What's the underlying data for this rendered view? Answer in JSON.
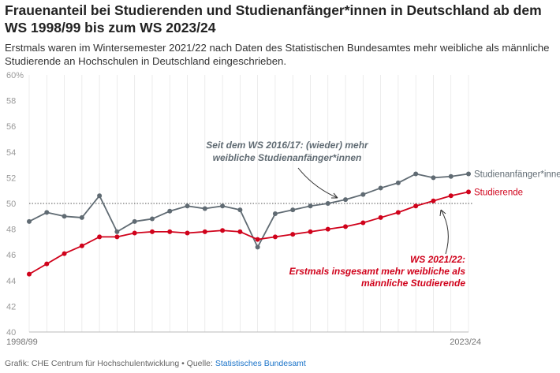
{
  "title": "Frauenanteil bei Studierenden und Studienanfänger*innen in Deutschland ab dem WS 1998/99 bis zum WS 2023/24",
  "subtitle": "Erstmals waren im Wintersemester 2021/22 nach Daten des Statistischen Bundesamtes mehr weibliche als männliche Studierende an Hochschulen in Deutschland eingeschrieben.",
  "footer": {
    "prefix": "Grafik: CHE Centrum für Hochschulentwicklung • Quelle: ",
    "source": "Statistisches Bundesamt"
  },
  "colors": {
    "studienanfaenger": "#606b73",
    "studierende": "#d0021b",
    "grid": "#e4e4e4",
    "reference": "#555555"
  },
  "chart_data": {
    "type": "line",
    "x_tick_labels": [
      "1998/99",
      "2023/24"
    ],
    "y_tick_labels": [
      "40",
      "42",
      "44",
      "46",
      "48",
      "50",
      "52",
      "54",
      "56",
      "58",
      "60%"
    ],
    "ylim": [
      40,
      60
    ],
    "y_ticks": [
      40,
      42,
      44,
      46,
      48,
      50,
      52,
      54,
      56,
      58,
      60
    ],
    "grid": "vertical",
    "reference_line": 50,
    "series": [
      {
        "name": "Studienanfänger*innen",
        "color": "#606b73",
        "values": [
          48.6,
          49.3,
          49.0,
          48.9,
          50.6,
          47.8,
          48.6,
          48.8,
          49.4,
          49.8,
          49.6,
          49.8,
          49.5,
          46.6,
          49.2,
          49.5,
          49.8,
          50.0,
          50.3,
          50.7,
          51.2,
          51.6,
          52.3,
          52.0,
          52.1,
          52.3
        ]
      },
      {
        "name": "Studierende",
        "color": "#d0021b",
        "values": [
          44.5,
          45.3,
          46.1,
          46.7,
          47.4,
          47.4,
          47.7,
          47.8,
          47.8,
          47.7,
          47.8,
          47.9,
          47.8,
          47.2,
          47.4,
          47.6,
          47.8,
          48.0,
          48.2,
          48.5,
          48.9,
          49.3,
          49.8,
          50.2,
          50.6,
          50.9
        ]
      }
    ],
    "annotations": [
      {
        "lines": [
          "Seit dem WS 2016/17: (wieder) mehr",
          "weibliche Studienanfänger*innen"
        ],
        "color": "#606b73"
      },
      {
        "lines": [
          "WS 2021/22:",
          "Erstmals insgesamt mehr weibliche als",
          "männliche Studierende"
        ],
        "color": "#d0021b"
      }
    ]
  }
}
